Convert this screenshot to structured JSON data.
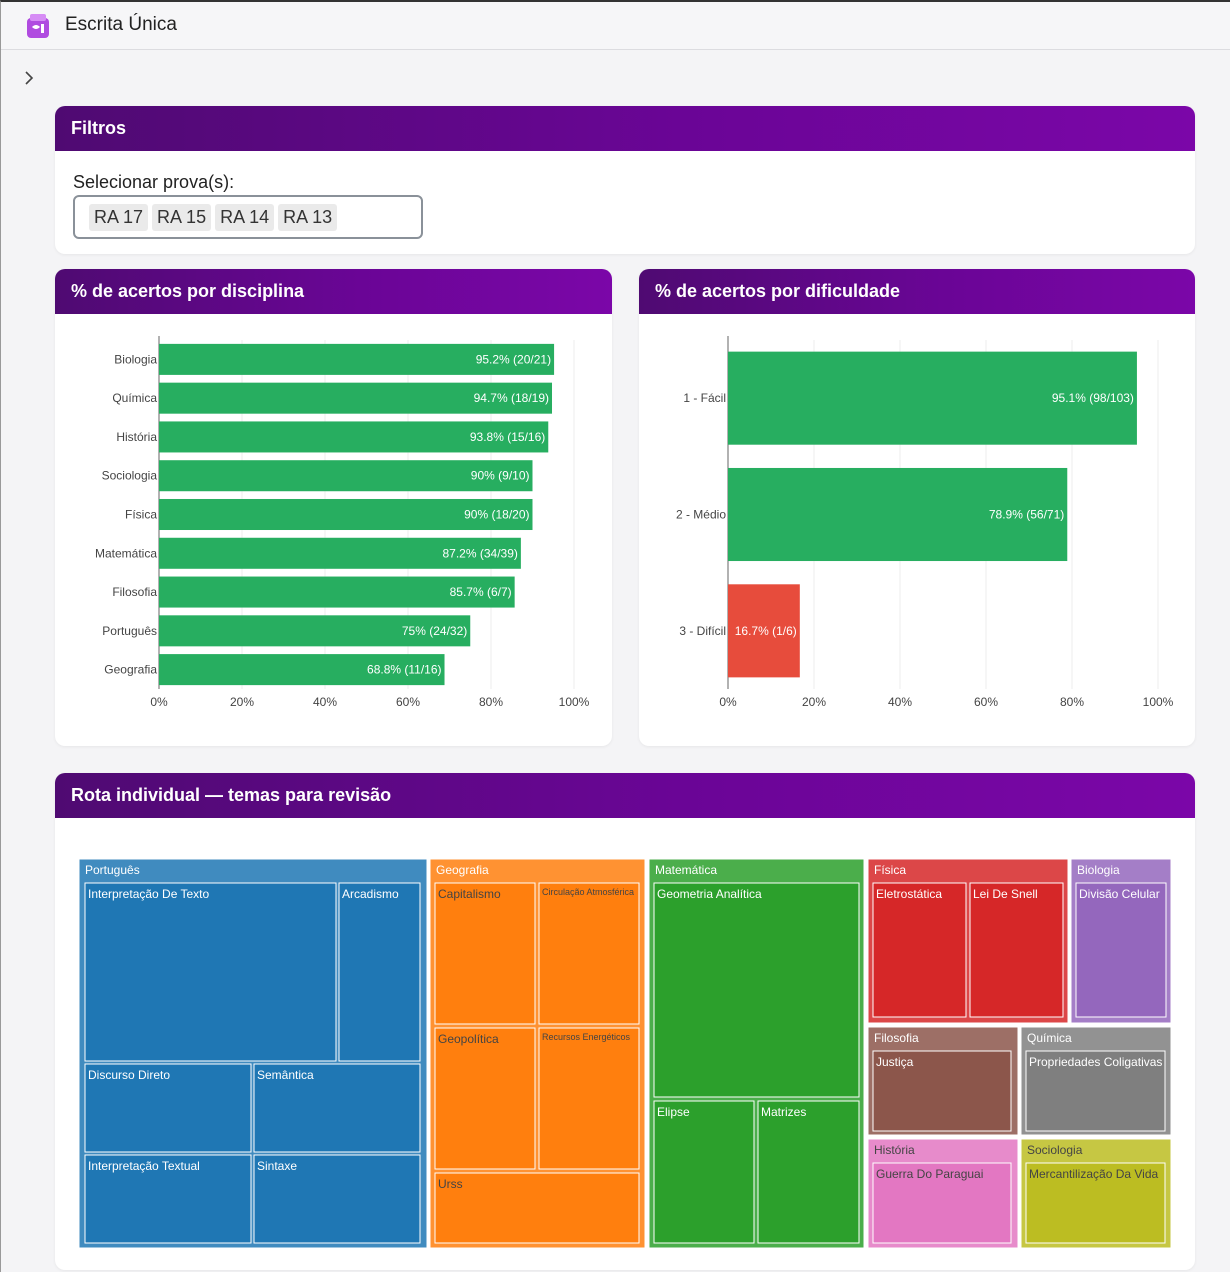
{
  "app": {
    "title": "Escrita Única"
  },
  "filters": {
    "header": "Filtros",
    "label": "Selecionar prova(s):",
    "selected": [
      "RA 17",
      "RA 15",
      "RA 14",
      "RA 13"
    ]
  },
  "colors": {
    "header_gradient_start": "#4f0a72",
    "header_gradient_end": "#7b06a8",
    "bar_green": "#27ae60",
    "bar_red": "#e74c3c"
  },
  "disciplina_chart": {
    "header": "% de acertos por disciplina",
    "chart_data": {
      "type": "bar",
      "orientation": "horizontal",
      "categories": [
        "Biologia",
        "Química",
        "História",
        "Sociologia",
        "Física",
        "Matemática",
        "Filosofia",
        "Português",
        "Geografia"
      ],
      "values": [
        95.2,
        94.7,
        93.8,
        90,
        90,
        87.2,
        85.7,
        75,
        68.8
      ],
      "labels": [
        "95.2% (20/21)",
        "94.7% (18/19)",
        "93.8% (15/16)",
        "90% (9/10)",
        "90% (18/20)",
        "87.2% (34/39)",
        "85.7% (6/7)",
        "75% (24/32)",
        "68.8% (11/16)"
      ],
      "xlim": [
        0,
        100
      ],
      "xticks": [
        "0%",
        "20%",
        "40%",
        "60%",
        "80%",
        "100%"
      ],
      "colors": [
        "#27ae60",
        "#27ae60",
        "#27ae60",
        "#27ae60",
        "#27ae60",
        "#27ae60",
        "#27ae60",
        "#27ae60",
        "#27ae60"
      ],
      "grid": true
    }
  },
  "dificuldade_chart": {
    "header": "% de acertos por dificuldade",
    "chart_data": {
      "type": "bar",
      "orientation": "horizontal",
      "categories": [
        "1 - Fácil",
        "2 - Médio",
        "3 - Difícil"
      ],
      "values": [
        95.1,
        78.9,
        16.7
      ],
      "labels": [
        "95.1% (98/103)",
        "78.9% (56/71)",
        "16.7% (1/6)"
      ],
      "xlim": [
        0,
        100
      ],
      "xticks": [
        "0%",
        "20%",
        "40%",
        "60%",
        "80%",
        "100%"
      ],
      "colors": [
        "#27ae60",
        "#27ae60",
        "#e74c3c"
      ],
      "grid": true
    }
  },
  "rota": {
    "header": "Rota individual — temas para revisão",
    "treemap": [
      {
        "name": "Português",
        "color": "#1f77b4",
        "topics": [
          "Interpretação De Texto",
          "Arcadismo",
          "Discurso Direto",
          "Semântica",
          "Interpretação Textual",
          "Sintaxe"
        ]
      },
      {
        "name": "Geografia",
        "color": "#ff7f0e",
        "topics": [
          "Capitalismo",
          "Circulação Atmosférica",
          "Geopolítica",
          "Recursos Energéticos",
          "Urss"
        ]
      },
      {
        "name": "Matemática",
        "color": "#2ca02c",
        "topics": [
          "Geometria Analítica",
          "Elipse",
          "Matrizes"
        ]
      },
      {
        "name": "Física",
        "color": "#d62728",
        "topics": [
          "Eletrostática",
          "Lei De Snell"
        ]
      },
      {
        "name": "Biologia",
        "color": "#9467bd",
        "topics": [
          "Divisão Celular"
        ]
      },
      {
        "name": "Filosofia",
        "color": "#8c564b",
        "topics": [
          "Justiça"
        ]
      },
      {
        "name": "Química",
        "color": "#7f7f7f",
        "topics": [
          "Propriedades Coligativas"
        ]
      },
      {
        "name": "História",
        "color": "#e377c2",
        "topics": [
          "Guerra Do Paraguai"
        ]
      },
      {
        "name": "Sociologia",
        "color": "#bcbd22",
        "topics": [
          "Mercantilização Da Vida"
        ]
      }
    ]
  }
}
